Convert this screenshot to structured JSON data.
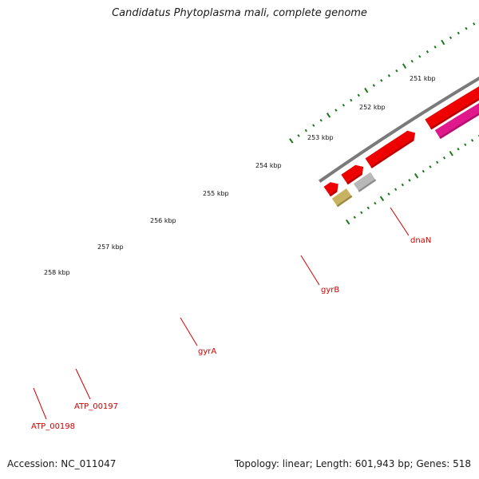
{
  "title": "Candidatus Phytoplasma mali, complete genome",
  "footer": {
    "accession": "Accession: NC_011047",
    "summary": "Topology: linear; Length: 601,943 bp; Genes: 518"
  },
  "ruler": {
    "labels": [
      "251 kbp",
      "252 kbp",
      "253 kbp",
      "254 kbp",
      "255 kbp",
      "256 kbp",
      "257 kbp",
      "258 kbp"
    ]
  },
  "genes": [
    {
      "name": "dnaN"
    },
    {
      "name": "gyrB"
    },
    {
      "name": "gyrA"
    },
    {
      "name": "ATP_00197"
    },
    {
      "name": "ATP_00198"
    }
  ],
  "colors": {
    "backbone": "#7a7a7a",
    "gene_forward": "#ee0000",
    "gene_cds": "#e0188c",
    "gene_other": "#b8b8b8",
    "gene_misc": "#c8b460",
    "tick": "#1a7a1a",
    "label": "#d00000"
  }
}
